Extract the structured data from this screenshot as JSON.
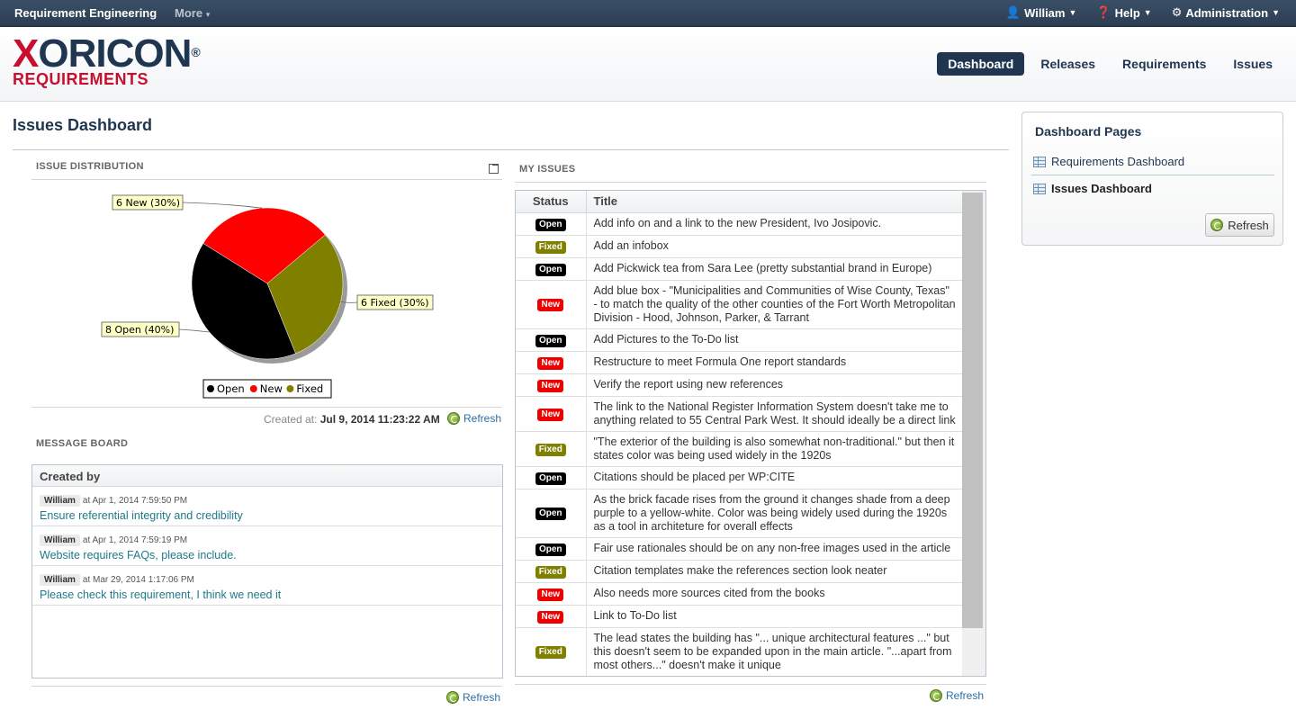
{
  "topbar": {
    "app_name": "Requirement Engineering",
    "more": "More",
    "user": "William",
    "help": "Help",
    "admin": "Administration"
  },
  "logo": {
    "line1": "XORICON",
    "line2": "REQUIREMENTS",
    "reg": "®"
  },
  "nav": {
    "dashboard": "Dashboard",
    "releases": "Releases",
    "requirements": "Requirements",
    "issues": "Issues"
  },
  "page_title": "Issues Dashboard",
  "issue_distribution": {
    "heading": "ISSUE DISTRIBUTION",
    "created_label": "Created at:",
    "created_value": "Jul 9, 2014 11:23:22 AM",
    "refresh": "Refresh"
  },
  "chart_data": {
    "type": "pie",
    "slices": [
      {
        "name": "Open",
        "count": 8,
        "percent": 40,
        "label": "8 Open (40%)",
        "color": "#000000"
      },
      {
        "name": "New",
        "count": 6,
        "percent": 30,
        "label": "6 New (30%)",
        "color": "#ff0000"
      },
      {
        "name": "Fixed",
        "count": 6,
        "percent": 30,
        "label": "6 Fixed (30%)",
        "color": "#808000"
      }
    ],
    "legend": [
      "Open",
      "New",
      "Fixed"
    ],
    "legend_placement": "bottom"
  },
  "message_board": {
    "heading": "MESSAGE BOARD",
    "column": "Created by",
    "messages": [
      {
        "author": "William",
        "when": "at Apr 1, 2014 7:59:50 PM",
        "text": "Ensure referential integrity and credibility"
      },
      {
        "author": "William",
        "when": "at Apr 1, 2014 7:59:19 PM",
        "text": "Website requires FAQs, please include."
      },
      {
        "author": "William",
        "when": "at Mar 29, 2014 1:17:06 PM",
        "text": "Please check this requirement, I think we need it"
      }
    ],
    "refresh": "Refresh"
  },
  "my_issues": {
    "heading": "MY ISSUES",
    "col_status": "Status",
    "col_title": "Title",
    "refresh": "Refresh",
    "rows": [
      {
        "status": "Open",
        "title": "Add info on and a link to the new President, Ivo Josipovic."
      },
      {
        "status": "Fixed",
        "title": "Add an infobox"
      },
      {
        "status": "Open",
        "title": "Add Pickwick tea from Sara Lee (pretty substantial brand in Europe)"
      },
      {
        "status": "New",
        "title": "Add blue box - \"Municipalities and Communities of Wise County, Texas\" - to match the quality of the other counties of the Fort Worth Metropolitan Division - Hood, Johnson, Parker, & Tarrant"
      },
      {
        "status": "Open",
        "title": "Add Pictures to the To-Do list"
      },
      {
        "status": "New",
        "title": "Restructure to meet Formula One report standards"
      },
      {
        "status": "New",
        "title": "Verify the report using new references"
      },
      {
        "status": "New",
        "title": "The link to the National Register Information System doesn't take me to anything related to 55 Central Park West. It should ideally be a direct link"
      },
      {
        "status": "Fixed",
        "title": "\"The exterior of the building is also somewhat non-traditional.\" but then it states color was being used widely in the 1920s"
      },
      {
        "status": "Open",
        "title": "Citations should be placed per WP:CITE"
      },
      {
        "status": "Open",
        "title": "As the brick facade rises from the ground it changes shade from a deep purple to a yellow-white. Color was being widely used during the 1920s as a tool in architeture for overall effects"
      },
      {
        "status": "Open",
        "title": "Fair use rationales should be on any non-free images used in the article"
      },
      {
        "status": "Fixed",
        "title": "Citation templates make the references section look neater"
      },
      {
        "status": "New",
        "title": "Also needs more sources cited from the books"
      },
      {
        "status": "New",
        "title": "Link to To-Do list"
      },
      {
        "status": "Fixed",
        "title": "The lead states the building has \"... unique architectural features ...\" but this doesn't seem to be expanded upon in the main article. \"...apart from most others...\" doesn't make it unique"
      }
    ]
  },
  "status_colors": {
    "Open": "#000000",
    "New": "#ee0000",
    "Fixed": "#808000"
  },
  "sidebar": {
    "heading": "Dashboard Pages",
    "items": [
      "Requirements Dashboard",
      "Issues Dashboard"
    ],
    "refresh": "Refresh"
  }
}
